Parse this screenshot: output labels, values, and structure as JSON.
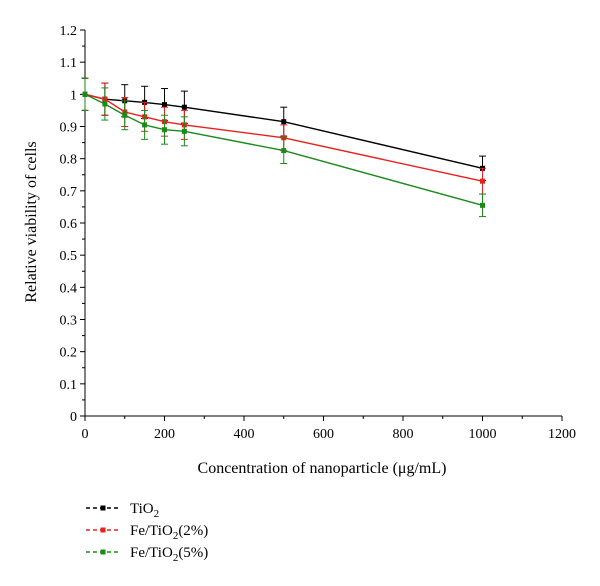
{
  "chart_data": {
    "type": "line",
    "xlabel": "Concentration of nanoparticle (μg/mL)",
    "ylabel": "Relative viability of cells",
    "xlim": [
      0,
      1200
    ],
    "ylim": [
      0,
      1.2
    ],
    "x_ticks": [
      0,
      200,
      400,
      600,
      800,
      1000,
      1200
    ],
    "y_ticks": [
      0,
      0.1,
      0.2,
      0.3,
      0.4,
      0.5,
      0.6,
      0.7,
      0.8,
      0.9,
      1,
      1.1,
      1.2
    ],
    "x_tick_labels": [
      "0",
      "200",
      "400",
      "600",
      "800",
      "1000",
      "1200"
    ],
    "y_tick_labels": [
      "0",
      "0.1",
      "0.2",
      "0.3",
      "0.4",
      "0.5",
      "0.6",
      "0.7",
      "0.8",
      "0.9",
      "1",
      "1.1",
      "1.2"
    ],
    "grid": false,
    "legend_position": "bottom-left",
    "series": [
      {
        "name": "TiO2",
        "legend_base": "TiO",
        "legend_sub": "2",
        "legend_suffix": "",
        "color": "#000000",
        "x": [
          0,
          50,
          100,
          150,
          200,
          250,
          500,
          1000
        ],
        "y": [
          1.0,
          0.985,
          0.98,
          0.975,
          0.968,
          0.96,
          0.915,
          0.77
        ],
        "err": [
          0.05,
          0.05,
          0.05,
          0.05,
          0.05,
          0.05,
          0.045,
          0.038
        ]
      },
      {
        "name": "Fe/TiO2(2%)",
        "legend_base": "Fe/TiO",
        "legend_sub": "2",
        "legend_suffix": "(2%)",
        "color": "#e8201e",
        "x": [
          0,
          50,
          100,
          150,
          200,
          250,
          500,
          1000
        ],
        "y": [
          1.0,
          0.985,
          0.945,
          0.93,
          0.915,
          0.905,
          0.865,
          0.73
        ],
        "err": [
          0.05,
          0.05,
          0.045,
          0.045,
          0.045,
          0.045,
          0.04,
          0.04
        ]
      },
      {
        "name": "Fe/TiO2(5%)",
        "legend_base": "Fe/TiO",
        "legend_sub": "2",
        "legend_suffix": "(5%)",
        "color": "#1a8a1a",
        "x": [
          0,
          50,
          100,
          150,
          200,
          250,
          500,
          1000
        ],
        "y": [
          1.0,
          0.97,
          0.935,
          0.905,
          0.89,
          0.885,
          0.825,
          0.655
        ],
        "err": [
          0.05,
          0.05,
          0.045,
          0.045,
          0.045,
          0.045,
          0.04,
          0.035
        ]
      }
    ]
  }
}
